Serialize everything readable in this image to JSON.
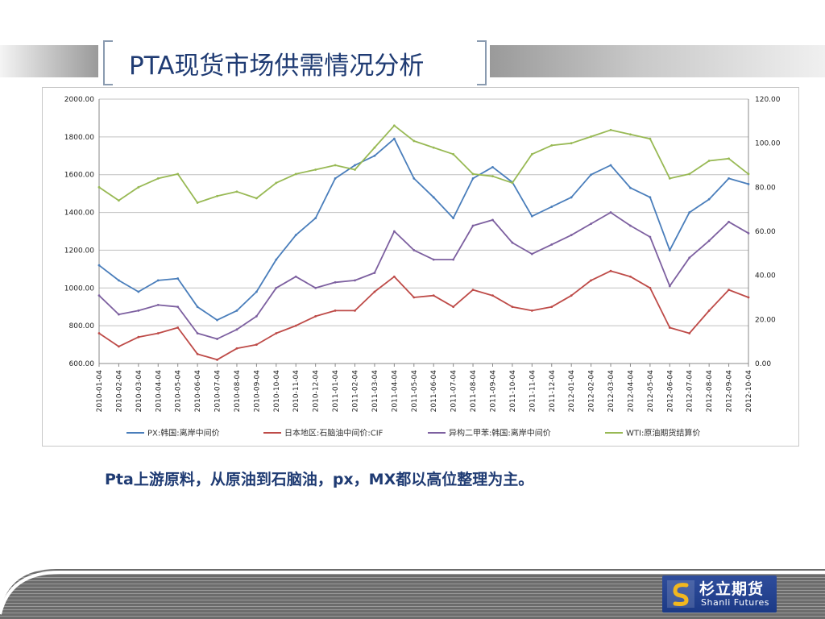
{
  "title": "PTA现货市场供需情况分析",
  "caption": "Pta上游原料，从原油到石脑油，px，MX都以高位整理为主。",
  "logo": {
    "cn": "杉立期货",
    "en": "Shanli Futures"
  },
  "colors": {
    "px": "#4a7ebb",
    "naphtha": "#be4b48",
    "mx": "#7d60a0",
    "wti": "#98b954",
    "grid": "#c0c0c0"
  },
  "chart_data": {
    "type": "line",
    "title": "",
    "x": [
      "2010-01-04",
      "2010-02-04",
      "2010-03-04",
      "2010-04-04",
      "2010-05-04",
      "2010-06-04",
      "2010-07-04",
      "2010-08-04",
      "2010-09-04",
      "2010-10-04",
      "2010-11-04",
      "2010-12-04",
      "2011-01-04",
      "2011-02-04",
      "2011-03-04",
      "2011-04-04",
      "2011-05-04",
      "2011-06-04",
      "2011-07-04",
      "2011-08-04",
      "2011-09-04",
      "2011-10-04",
      "2011-11-04",
      "2011-12-04",
      "2012-01-04",
      "2012-02-04",
      "2012-03-04",
      "2012-04-04",
      "2012-05-04",
      "2012-06-04",
      "2012-07-04",
      "2012-08-04",
      "2012-09-04",
      "2012-10-04"
    ],
    "y_left": {
      "ticks": [
        "2000.00",
        "1800.00",
        "1600.00",
        "1400.00",
        "1200.00",
        "1000.00",
        "800.00",
        "600.00"
      ],
      "range": [
        600,
        2000
      ]
    },
    "y_right": {
      "ticks": [
        "120.00",
        "100.00",
        "80.00",
        "60.00",
        "40.00",
        "20.00",
        "0.00"
      ],
      "range": [
        0,
        120
      ]
    },
    "grid": true,
    "legend_position": "bottom",
    "series": [
      {
        "name": "PX:韩国:离岸中间价",
        "axis": "left",
        "color": "#4a7ebb",
        "values": [
          1120,
          1040,
          980,
          1040,
          1050,
          900,
          830,
          880,
          980,
          1150,
          1280,
          1370,
          1580,
          1650,
          1700,
          1790,
          1580,
          1480,
          1370,
          1580,
          1640,
          1560,
          1380,
          1430,
          1480,
          1600,
          1650,
          1530,
          1480,
          1200,
          1400,
          1470,
          1580,
          1550
        ]
      },
      {
        "name": "日本地区:石脑油中间价:CIF",
        "axis": "left",
        "color": "#be4b48",
        "values": [
          760,
          690,
          740,
          760,
          790,
          650,
          620,
          680,
          700,
          760,
          800,
          850,
          880,
          880,
          980,
          1060,
          950,
          960,
          900,
          990,
          960,
          900,
          880,
          900,
          960,
          1040,
          1090,
          1060,
          1000,
          790,
          760,
          880,
          990,
          950
        ]
      },
      {
        "name": "异构二甲苯:韩国:离岸中间价",
        "axis": "left",
        "color": "#7d60a0",
        "values": [
          960,
          860,
          880,
          910,
          900,
          760,
          730,
          780,
          850,
          1000,
          1060,
          1000,
          1030,
          1040,
          1080,
          1300,
          1200,
          1150,
          1150,
          1330,
          1360,
          1240,
          1180,
          1230,
          1280,
          1340,
          1400,
          1330,
          1270,
          1010,
          1160,
          1250,
          1350,
          1290
        ]
      },
      {
        "name": "WTI:原油期货结算价",
        "axis": "right",
        "color": "#98b954",
        "values": [
          80,
          74,
          80,
          84,
          86,
          73,
          76,
          78,
          75,
          82,
          86,
          88,
          90,
          88,
          98,
          108,
          101,
          98,
          95,
          86,
          85,
          82,
          95,
          99,
          100,
          103,
          106,
          104,
          102,
          84,
          86,
          92,
          93,
          86
        ]
      }
    ]
  }
}
